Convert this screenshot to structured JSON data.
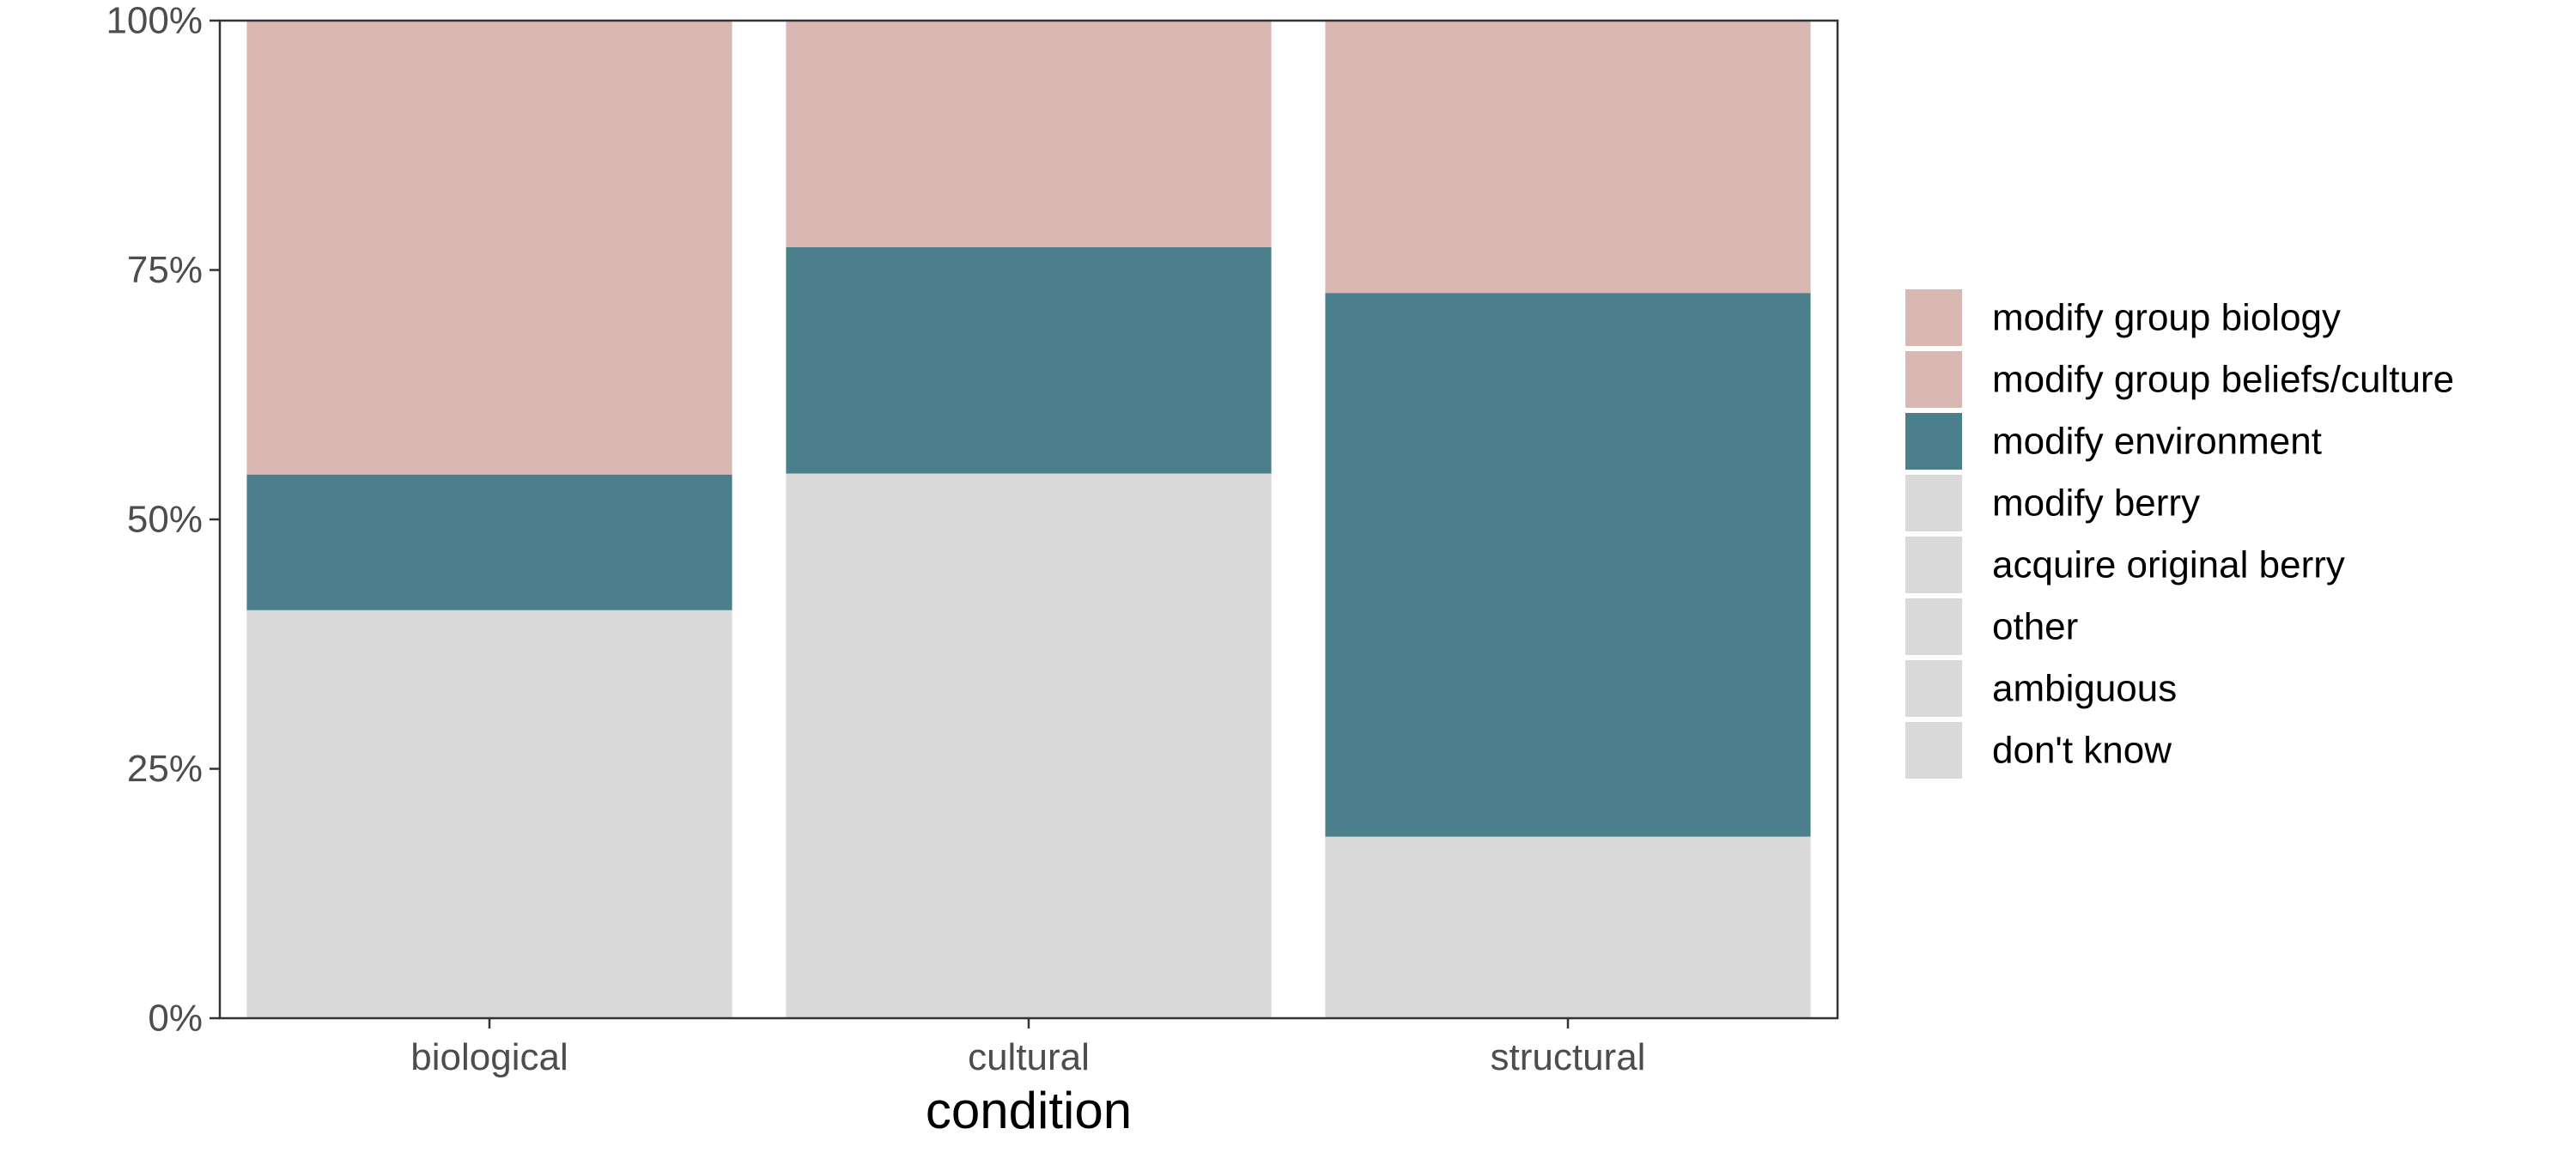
{
  "chart_data": {
    "type": "bar",
    "stacked": true,
    "normalized": true,
    "categories": [
      "biological",
      "cultural",
      "structural"
    ],
    "xlabel": "condition",
    "ylabel": "",
    "ylim": [
      0,
      1
    ],
    "y_ticks": [
      {
        "value": 0,
        "label": "0%"
      },
      {
        "value": 0.25,
        "label": "25%"
      },
      {
        "value": 0.5,
        "label": "50%"
      },
      {
        "value": 0.75,
        "label": "75%"
      },
      {
        "value": 1,
        "label": "100%"
      }
    ],
    "legend_position": "right",
    "grid": false,
    "series": [
      {
        "name": "modify group biology",
        "color": "#d9b8b4",
        "values": [
          0,
          0,
          0
        ]
      },
      {
        "name": "modify group beliefs/culture",
        "color": "#d9b8b4",
        "values": [
          0.455,
          0.227,
          0.273
        ]
      },
      {
        "name": "modify environment",
        "color": "#4a7f8b",
        "values": [
          0.136,
          0.227,
          0.545
        ]
      },
      {
        "name": "modify berry",
        "color": "#d9d9d9",
        "values": [
          0.409,
          0.546,
          0.182
        ]
      },
      {
        "name": "acquire original berry",
        "color": "#d9d9d9",
        "values": [
          0,
          0,
          0
        ]
      },
      {
        "name": "other",
        "color": "#d9d9d9",
        "values": [
          0,
          0,
          0
        ]
      },
      {
        "name": "ambiguous",
        "color": "#d9d9d9",
        "values": [
          0,
          0,
          0
        ]
      },
      {
        "name": "don't know",
        "color": "#d9d9d9",
        "values": [
          0,
          0,
          0
        ]
      }
    ]
  }
}
